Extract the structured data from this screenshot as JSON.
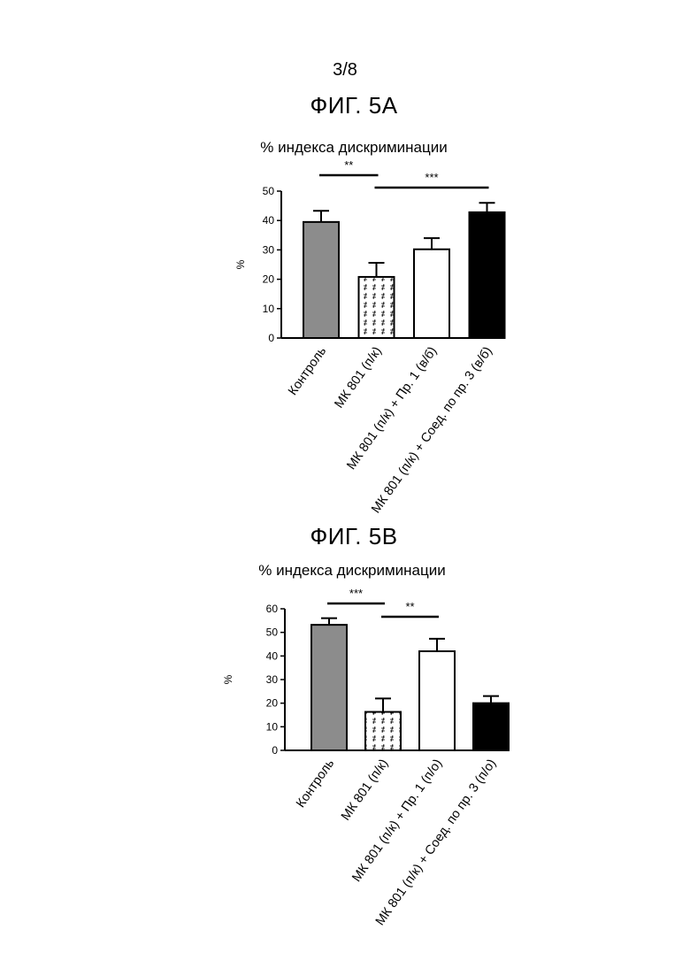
{
  "page_number": "3/8",
  "figures": [
    {
      "title": "ФИГ. 5А"
    },
    {
      "title": "ФИГ. 5В"
    }
  ],
  "chart_data": [
    {
      "type": "bar",
      "title": "% индекса дискриминации",
      "xlabel": "",
      "ylabel": "%",
      "ylim": [
        0,
        50
      ],
      "yticks": [
        0,
        10,
        20,
        30,
        40,
        50
      ],
      "categories": [
        "Контроль",
        "МК 801 (п/к)",
        "МК 801 (п/к) + Пр. 1 (в/б)",
        "МК 801 (п/к) + Соед. по пр. 3 (в/б)"
      ],
      "values": [
        39.5,
        20.8,
        30.2,
        42.8
      ],
      "errors": [
        3.8,
        4.8,
        3.8,
        3.2
      ],
      "fills": [
        "#8c8c8c",
        "pattern",
        "#ffffff",
        "#000000"
      ],
      "significance": [
        {
          "label": "**",
          "from": 0,
          "to": 1
        },
        {
          "label": "***",
          "from": 1,
          "to": 3
        }
      ],
      "grid": false,
      "legend": "none"
    },
    {
      "type": "bar",
      "title": "% индекса дискриминации",
      "xlabel": "",
      "ylabel": "%",
      "ylim": [
        0,
        60
      ],
      "yticks": [
        0,
        10,
        20,
        30,
        40,
        50,
        60
      ],
      "categories": [
        "Контроль",
        "МК 801 (п/к)",
        "МК 801 (п/к) + Пр. 1 (п/о)",
        "МК 801 (п/к) + Соед. по пр. 3 (п/о)"
      ],
      "values": [
        53.2,
        16.3,
        42.0,
        20.0
      ],
      "errors": [
        2.8,
        5.7,
        5.3,
        3.0
      ],
      "fills": [
        "#8c8c8c",
        "pattern",
        "#ffffff",
        "#000000"
      ],
      "significance": [
        {
          "label": "***",
          "from": 0,
          "to": 1
        },
        {
          "label": "**",
          "from": 1,
          "to": 2
        }
      ],
      "grid": false,
      "legend": "none"
    }
  ]
}
